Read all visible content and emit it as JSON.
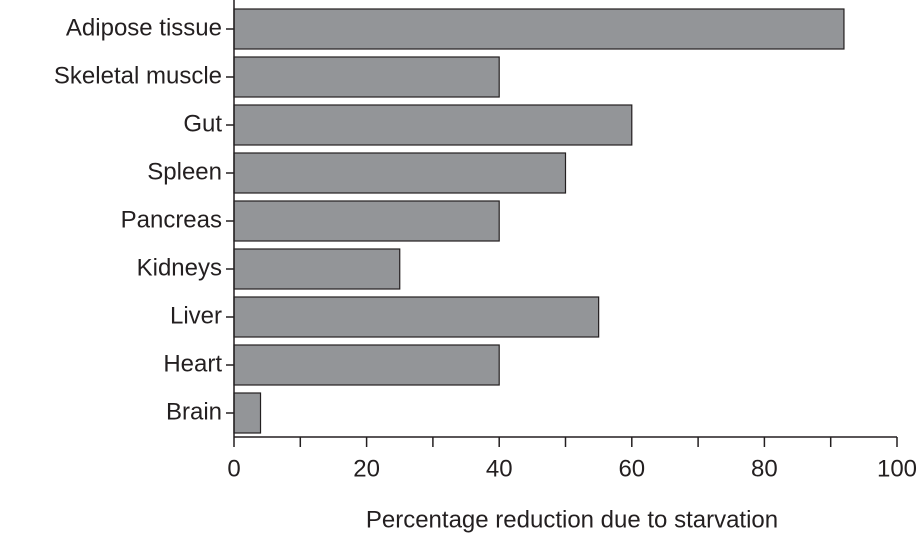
{
  "chart_data": {
    "type": "hbar",
    "x_label": "Percentage reduction due to starvation",
    "categories": [
      "Adipose tissue",
      "Skeletal muscle",
      "Gut",
      "Spleen",
      "Pancreas",
      "Kidneys",
      "Liver",
      "Heart",
      "Brain"
    ],
    "values": [
      92,
      40,
      60,
      50,
      40,
      25,
      55,
      40,
      4
    ],
    "color": "#939598",
    "xlim": [
      0,
      100
    ],
    "xticks": [
      0,
      20,
      40,
      60,
      80,
      100
    ],
    "xminorticks": [
      10,
      30,
      50,
      70,
      90
    ]
  }
}
